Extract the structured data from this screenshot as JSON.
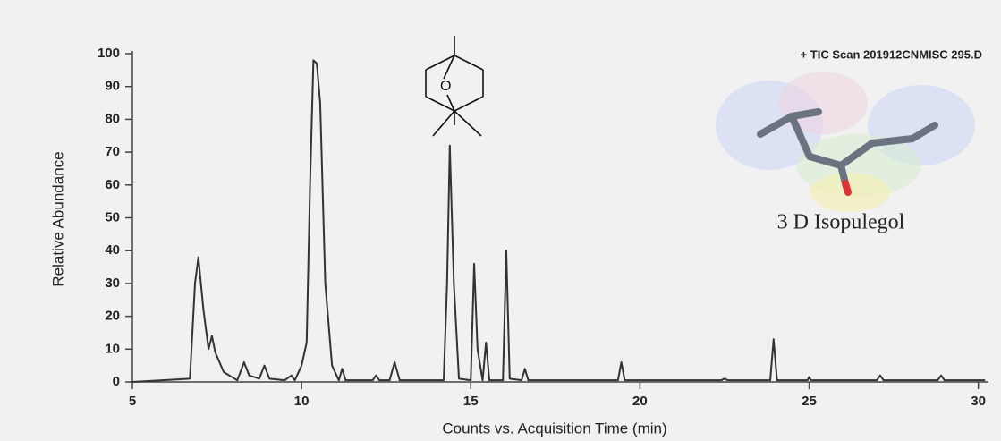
{
  "chart_data": {
    "type": "line",
    "title": "+ TIC Scan 201912CNMISC  295.D",
    "annotation": "3 D Isopulegol",
    "xlabel": "Counts vs. Acquisition Time (min)",
    "ylabel": "Relative Abundance",
    "color": "#333333",
    "x": [
      5,
      6.7,
      6.85,
      6.95,
      7.1,
      7.25,
      7.35,
      7.45,
      7.7,
      8.1,
      8.3,
      8.45,
      8.75,
      8.9,
      9.05,
      9.5,
      9.7,
      9.8,
      10.0,
      10.15,
      10.25,
      10.35,
      10.45,
      10.55,
      10.7,
      10.9,
      11.1,
      11.2,
      11.3,
      12.1,
      12.2,
      12.3,
      12.6,
      12.75,
      12.9,
      14.2,
      14.3,
      14.38,
      14.5,
      14.65,
      15.0,
      15.1,
      15.2,
      15.35,
      15.45,
      15.55,
      15.95,
      16.05,
      16.15,
      16.5,
      16.6,
      16.7,
      19.35,
      19.45,
      19.55,
      22.4,
      22.5,
      22.6,
      23.85,
      23.95,
      24.05,
      24.95,
      25.0,
      25.05,
      27.0,
      27.1,
      27.2,
      28.8,
      28.9,
      29.0,
      30.2
    ],
    "values": [
      0,
      1,
      30,
      38,
      22,
      10,
      14,
      9,
      3,
      0.5,
      6,
      2,
      1,
      5,
      1,
      0.5,
      2,
      0.5,
      5,
      12,
      60,
      98,
      97,
      85,
      30,
      5,
      0.5,
      4,
      0.5,
      0.5,
      2,
      0.5,
      0.5,
      6,
      0.5,
      0.5,
      30,
      72,
      30,
      1,
      0.5,
      36,
      10,
      0.5,
      12,
      0.5,
      0.5,
      40,
      1,
      0.5,
      4,
      0.5,
      0.5,
      6,
      0.5,
      0.5,
      1,
      0.5,
      0.5,
      13,
      0.5,
      0.5,
      1.5,
      0.5,
      0.5,
      2,
      0.5,
      0.5,
      2,
      0.5,
      0.5
    ],
    "xlim": [
      5,
      30.3
    ],
    "ylim": [
      0,
      100
    ],
    "xticks": [
      5,
      10,
      15,
      20,
      25,
      30
    ],
    "yticks": [
      0,
      10,
      20,
      30,
      40,
      50,
      60,
      70,
      80,
      90,
      100
    ]
  }
}
